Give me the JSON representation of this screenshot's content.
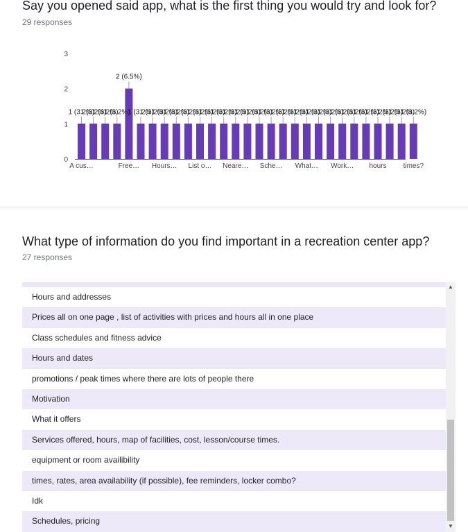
{
  "questions": [
    {
      "title": "Say you opened said app, what is the first thing you would try and look for?",
      "responses": "29 responses"
    },
    {
      "title": "What type of information do you find important in a recreation center app?",
      "responses": "27 responses"
    }
  ],
  "chart_data": {
    "type": "bar",
    "ylim": [
      0,
      3
    ],
    "yticks": [
      "0",
      "1",
      "2",
      "3"
    ],
    "bar_color": "#673ab7",
    "categories": [
      "A cus…",
      "",
      "",
      "",
      "Free…",
      "",
      "",
      "Hours…",
      "",
      "",
      "List o…",
      "",
      "",
      "Neare…",
      "",
      "",
      "Sche…",
      "",
      "",
      "What…",
      "",
      "",
      "Work…",
      "",
      "",
      "hours",
      "",
      "",
      "times?"
    ],
    "values": [
      1,
      1,
      1,
      1,
      2,
      1,
      1,
      1,
      1,
      1,
      1,
      1,
      1,
      1,
      1,
      1,
      1,
      1,
      1,
      1,
      1,
      1,
      1,
      1,
      1,
      1,
      1,
      1,
      1
    ],
    "labels": [
      "1 (3.2%)",
      "1 (3.2%)",
      "1 (3.2%)",
      "1 (3.2%)",
      "2 (6.5%)",
      "1 (3.2%)",
      "1 (3.2%)",
      "1 (3.2%)",
      "1 (3.2%)",
      "1 (3.2%)",
      "1 (3.2%)",
      "1 (3.2%)",
      "1 (3.2%)",
      "1 (3.2%)",
      "1 (3.2%)",
      "1 (3.2%)",
      "1 (3.2%)",
      "1 (3.2%)",
      "1 (3.2%)",
      "1 (3.2%)",
      "1 (3.2%)",
      "1 (3.2%)",
      "1 (3.2%)",
      "1 (3.2%)",
      "1 (3.2%)",
      "1 (3.2%)",
      "1 (3.2%)",
      "1 (3.2%)",
      "1 (3.2%)"
    ]
  },
  "answers": [
    "Hours and addresses",
    "Prices all on one page , list of activities with prices and hours all in one place",
    "Class schedules and fitness advice",
    "Hours and dates",
    "promotions / peak times where there are lots of people there",
    "Motivation",
    "What it offers",
    "Services offered, hours, map of facilities, cost, lesson/course times.",
    "equipment or room availibility",
    "times, rates, area availability (if possible), fee reminders, locker combo?",
    "Idk",
    "Schedules, pricing"
  ],
  "scroll_up_icon": "▲",
  "scroll_down_icon": "▼"
}
